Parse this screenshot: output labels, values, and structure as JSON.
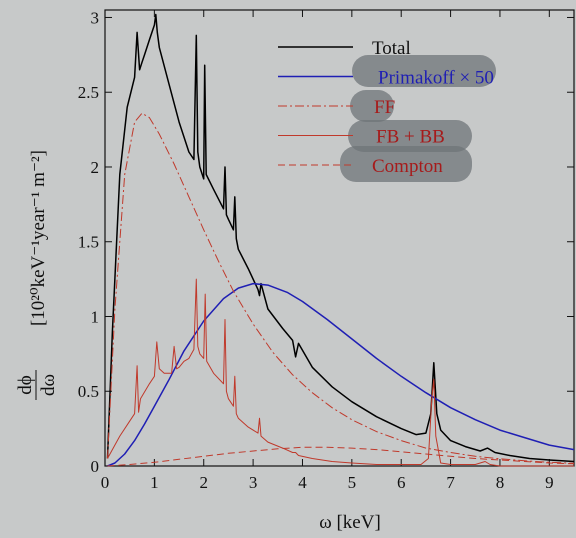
{
  "chart_data": {
    "type": "line",
    "xlabel": "ω [keV]",
    "ylabel_prefix_num": "dϕ",
    "ylabel_prefix_den": "dω",
    "ylabel_units": "[10²⁰keV⁻¹year⁻¹ m⁻²]",
    "xlim": [
      0,
      9.5
    ],
    "ylim": [
      0,
      3.05
    ],
    "xticks": [
      0,
      1,
      2,
      3,
      4,
      5,
      6,
      7,
      8,
      9
    ],
    "yticks": [
      0,
      0.5,
      1,
      1.5,
      2,
      2.5,
      3
    ],
    "xtick_labels": [
      "0",
      "1",
      "2",
      "3",
      "4",
      "5",
      "6",
      "7",
      "8",
      "9"
    ],
    "ytick_labels": [
      "0",
      "0.5",
      "1",
      "1.5",
      "2",
      "2.5",
      "3"
    ],
    "legend_position": "top-right",
    "series": [
      {
        "name": "Total",
        "color": "#000000",
        "style": "solid",
        "x": [
          0.05,
          0.15,
          0.3,
          0.45,
          0.6,
          0.65,
          0.7,
          0.75,
          0.8,
          0.9,
          1.0,
          1.03,
          1.06,
          1.1,
          1.3,
          1.5,
          1.7,
          1.8,
          1.85,
          1.88,
          1.92,
          2.0,
          2.02,
          2.05,
          2.2,
          2.4,
          2.43,
          2.46,
          2.5,
          2.6,
          2.63,
          2.66,
          2.7,
          2.9,
          3.1,
          3.13,
          3.16,
          3.3,
          3.6,
          3.8,
          3.86,
          3.92,
          4.2,
          4.6,
          5.0,
          5.5,
          6.0,
          6.3,
          6.5,
          6.6,
          6.66,
          6.72,
          6.8,
          7.0,
          7.3,
          7.6,
          7.75,
          7.9,
          8.2,
          8.6,
          9.0,
          9.5
        ],
        "y": [
          0.05,
          0.9,
          1.95,
          2.4,
          2.6,
          2.9,
          2.65,
          2.7,
          2.75,
          2.85,
          2.95,
          3.02,
          2.9,
          2.8,
          2.55,
          2.3,
          2.1,
          2.05,
          2.88,
          2.1,
          2.0,
          1.92,
          2.68,
          1.95,
          1.85,
          1.72,
          2.0,
          1.68,
          1.65,
          1.58,
          1.8,
          1.52,
          1.45,
          1.32,
          1.18,
          1.14,
          1.22,
          1.05,
          0.92,
          0.84,
          0.73,
          0.82,
          0.66,
          0.53,
          0.43,
          0.33,
          0.25,
          0.21,
          0.22,
          0.35,
          0.69,
          0.35,
          0.24,
          0.17,
          0.13,
          0.1,
          0.12,
          0.09,
          0.07,
          0.05,
          0.04,
          0.03
        ]
      },
      {
        "name": "Primakoff × 50",
        "color": "#1f1fb4",
        "style": "solid",
        "x": [
          0.05,
          0.2,
          0.4,
          0.6,
          0.8,
          1.0,
          1.3,
          1.6,
          2.0,
          2.4,
          2.7,
          3.0,
          3.3,
          3.7,
          4.0,
          4.5,
          5.0,
          5.5,
          6.0,
          6.5,
          7.0,
          7.5,
          8.0,
          8.5,
          9.0,
          9.5
        ],
        "y": [
          0.0,
          0.02,
          0.08,
          0.17,
          0.28,
          0.4,
          0.58,
          0.77,
          0.97,
          1.12,
          1.19,
          1.22,
          1.21,
          1.16,
          1.1,
          0.98,
          0.85,
          0.72,
          0.6,
          0.49,
          0.39,
          0.31,
          0.24,
          0.19,
          0.14,
          0.11
        ]
      },
      {
        "name": "FF",
        "color": "#c0392b",
        "style": "dashdot",
        "x": [
          0.05,
          0.2,
          0.4,
          0.6,
          0.75,
          0.9,
          1.1,
          1.4,
          1.7,
          2.0,
          2.3,
          2.6,
          3.0,
          3.4,
          3.8,
          4.2,
          4.6,
          5.0,
          5.5,
          6.0,
          6.5,
          7.0,
          7.5,
          8.0,
          8.5,
          9.0,
          9.5
        ],
        "y": [
          0.05,
          1.05,
          1.95,
          2.3,
          2.36,
          2.33,
          2.22,
          2.02,
          1.8,
          1.58,
          1.37,
          1.17,
          0.95,
          0.76,
          0.61,
          0.49,
          0.39,
          0.31,
          0.23,
          0.17,
          0.12,
          0.09,
          0.065,
          0.048,
          0.035,
          0.025,
          0.018
        ]
      },
      {
        "name": "FB + BB",
        "color": "#c0392b",
        "style": "solid",
        "x": [
          0.05,
          0.3,
          0.6,
          0.65,
          0.68,
          0.72,
          0.9,
          1.0,
          1.05,
          1.1,
          1.2,
          1.35,
          1.4,
          1.45,
          1.5,
          1.6,
          1.7,
          1.8,
          1.85,
          1.88,
          1.92,
          2.0,
          2.03,
          2.06,
          2.2,
          2.4,
          2.43,
          2.46,
          2.5,
          2.6,
          2.63,
          2.66,
          2.7,
          2.9,
          3.1,
          3.13,
          3.16,
          3.3,
          3.6,
          3.8,
          3.86,
          3.92,
          4.2,
          4.6,
          5.0,
          5.5,
          6.0,
          6.4,
          6.55,
          6.62,
          6.66,
          6.7,
          6.8,
          7.0,
          7.5,
          7.7,
          7.8,
          8.0,
          8.5,
          9.0,
          9.5
        ],
        "y": [
          0.05,
          0.2,
          0.35,
          0.67,
          0.36,
          0.45,
          0.55,
          0.6,
          0.83,
          0.65,
          0.62,
          0.62,
          0.8,
          0.65,
          0.66,
          0.7,
          0.72,
          0.78,
          1.25,
          0.8,
          0.75,
          0.72,
          1.15,
          0.7,
          0.62,
          0.55,
          0.98,
          0.5,
          0.45,
          0.4,
          0.6,
          0.35,
          0.32,
          0.26,
          0.22,
          0.32,
          0.2,
          0.16,
          0.12,
          0.09,
          0.09,
          0.07,
          0.05,
          0.03,
          0.02,
          0.01,
          0.01,
          0.01,
          0.05,
          0.45,
          0.58,
          0.2,
          0.02,
          0.01,
          0.01,
          0.03,
          0.01,
          0.0,
          0.0,
          0.0,
          0.0
        ]
      },
      {
        "name": "Compton",
        "color": "#c0392b",
        "style": "dashed",
        "x": [
          0.05,
          0.5,
          1.0,
          1.5,
          2.0,
          2.5,
          3.0,
          3.5,
          4.0,
          4.5,
          5.0,
          5.5,
          6.0,
          6.5,
          7.0,
          7.5,
          8.0,
          8.5,
          9.0,
          9.5
        ],
        "y": [
          0.0,
          0.01,
          0.025,
          0.045,
          0.065,
          0.085,
          0.1,
          0.115,
          0.125,
          0.125,
          0.12,
          0.11,
          0.095,
          0.08,
          0.065,
          0.05,
          0.04,
          0.03,
          0.02,
          0.015
        ]
      }
    ]
  }
}
